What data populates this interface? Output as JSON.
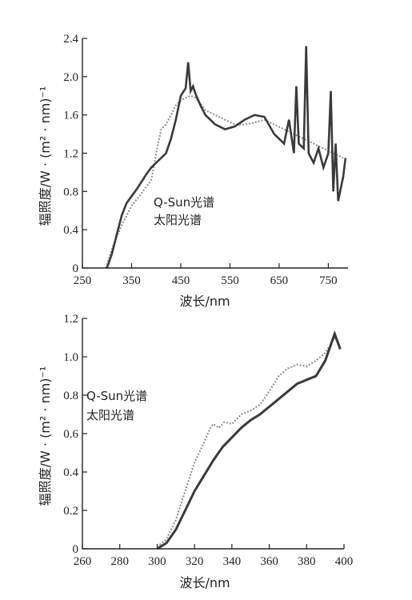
{
  "chart_data": [
    {
      "type": "line",
      "xlabel": "波长/nm",
      "ylabel": "辐照度/W · (m² · nm)⁻¹",
      "xlim": [
        250,
        790
      ],
      "ylim": [
        0,
        2.4
      ],
      "xticks": [
        "250",
        "350",
        "450",
        "550",
        "650",
        "750"
      ],
      "xtick_values": [
        250,
        350,
        450,
        550,
        650,
        750
      ],
      "yticks": [
        "0",
        "0.4",
        "0.8",
        "1.2",
        "1.6",
        "2.0",
        "2.4"
      ],
      "ytick_values": [
        0,
        0.4,
        0.8,
        1.2,
        1.6,
        2.0,
        2.4
      ],
      "legend": [
        "Q-Sun光谱",
        "太阳光谱"
      ],
      "series": [
        {
          "name": "Q-Sun光谱",
          "color": "#8a8a8a",
          "style": "dotted",
          "x": [
            298,
            310,
            330,
            350,
            370,
            390,
            400,
            410,
            420,
            430,
            440,
            450,
            460,
            470,
            480,
            490,
            500,
            520,
            540,
            560,
            580,
            600,
            620,
            640,
            660,
            680,
            700,
            720,
            740,
            760,
            780
          ],
          "y": [
            0.0,
            0.2,
            0.45,
            0.65,
            0.78,
            0.92,
            1.2,
            1.45,
            1.5,
            1.6,
            1.7,
            1.75,
            1.78,
            1.8,
            1.78,
            1.72,
            1.65,
            1.6,
            1.55,
            1.5,
            1.5,
            1.52,
            1.55,
            1.5,
            1.45,
            1.4,
            1.35,
            1.3,
            1.25,
            1.2,
            1.15
          ]
        },
        {
          "name": "太阳光谱",
          "color": "#3a3a3a",
          "style": "solid",
          "x": [
            300,
            310,
            320,
            330,
            340,
            350,
            360,
            370,
            380,
            390,
            400,
            410,
            420,
            430,
            440,
            450,
            460,
            465,
            470,
            475,
            480,
            490,
            500,
            520,
            540,
            560,
            580,
            600,
            620,
            640,
            660,
            670,
            680,
            685,
            690,
            700,
            705,
            710,
            720,
            730,
            740,
            750,
            755,
            760,
            765,
            770,
            780,
            785
          ],
          "y": [
            0.0,
            0.15,
            0.35,
            0.55,
            0.68,
            0.75,
            0.82,
            0.9,
            0.98,
            1.05,
            1.1,
            1.15,
            1.2,
            1.35,
            1.55,
            1.8,
            1.88,
            2.15,
            1.85,
            1.9,
            1.82,
            1.7,
            1.6,
            1.5,
            1.45,
            1.48,
            1.55,
            1.6,
            1.58,
            1.4,
            1.3,
            1.55,
            1.2,
            1.9,
            1.3,
            1.25,
            2.32,
            1.2,
            1.1,
            1.25,
            1.05,
            1.2,
            1.85,
            0.8,
            1.3,
            0.7,
            0.95,
            1.15
          ]
        }
      ]
    },
    {
      "type": "line",
      "xlabel": "波长/nm",
      "ylabel": "辐照度/W · (m² · nm)⁻¹",
      "xlim": [
        260,
        400
      ],
      "ylim": [
        0,
        1.2
      ],
      "xticks": [
        "260",
        "280",
        "300",
        "320",
        "340",
        "360",
        "380",
        "400"
      ],
      "xtick_values": [
        260,
        280,
        300,
        320,
        340,
        360,
        380,
        400
      ],
      "yticks": [
        "0",
        "0.2",
        "0.4",
        "0.6",
        "0.8",
        "1.0",
        "1.2"
      ],
      "ytick_values": [
        0,
        0.2,
        0.4,
        0.6,
        0.8,
        1.0,
        1.2
      ],
      "legend": [
        "Q-Sun光谱",
        "太阳光谱"
      ],
      "series": [
        {
          "name": "Q-Sun光谱",
          "color": "#8a8a8a",
          "style": "dotted",
          "x": [
            300,
            305,
            310,
            315,
            320,
            325,
            328,
            330,
            333,
            336,
            340,
            345,
            350,
            355,
            360,
            365,
            370,
            375,
            380,
            385,
            390,
            395,
            398
          ],
          "y": [
            0.01,
            0.05,
            0.15,
            0.3,
            0.45,
            0.55,
            0.62,
            0.65,
            0.63,
            0.66,
            0.65,
            0.7,
            0.72,
            0.75,
            0.82,
            0.9,
            0.94,
            0.96,
            0.95,
            0.98,
            1.02,
            1.1,
            1.05
          ]
        },
        {
          "name": "太阳光谱",
          "color": "#3a3a3a",
          "style": "solid",
          "x": [
            300,
            305,
            310,
            315,
            320,
            325,
            330,
            335,
            340,
            345,
            350,
            355,
            360,
            365,
            370,
            375,
            380,
            385,
            390,
            395,
            398
          ],
          "y": [
            0.0,
            0.03,
            0.1,
            0.2,
            0.3,
            0.38,
            0.46,
            0.53,
            0.58,
            0.63,
            0.67,
            0.7,
            0.74,
            0.78,
            0.82,
            0.86,
            0.88,
            0.9,
            0.98,
            1.12,
            1.04
          ]
        }
      ]
    }
  ]
}
